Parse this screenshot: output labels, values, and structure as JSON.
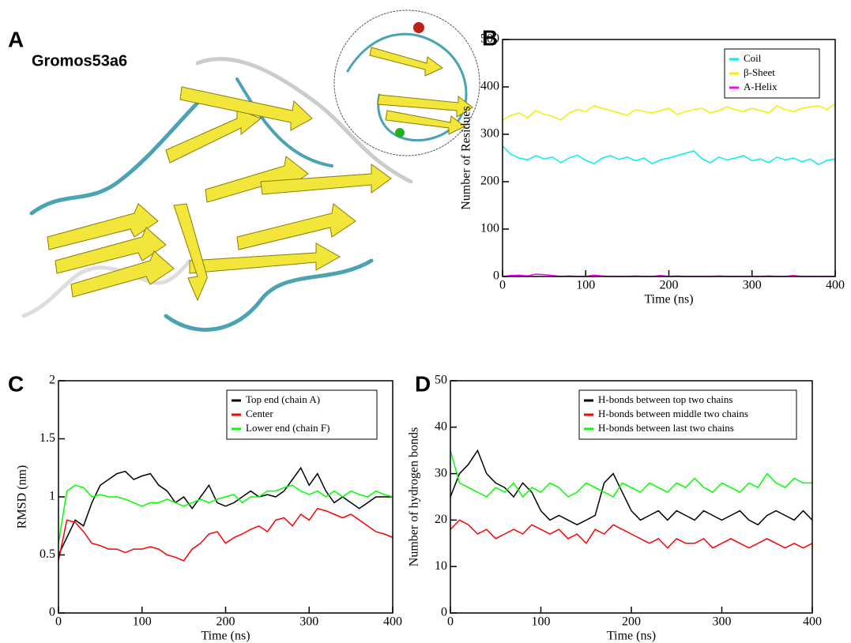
{
  "figure": {
    "panel_labels": [
      "A",
      "B",
      "C",
      "D"
    ],
    "structure_label": "Gromos53a6"
  },
  "chart_data": [
    {
      "type": "line",
      "xlabel": "Time (ns)",
      "ylabel": "Number of Residues",
      "xlim": [
        0,
        400
      ],
      "xticks": [
        0,
        100,
        200,
        300,
        400
      ],
      "ylim": [
        0,
        500
      ],
      "yticks": [
        0,
        100,
        200,
        300,
        400,
        500
      ],
      "legend": "upper right",
      "x": [
        0,
        10,
        20,
        30,
        40,
        50,
        60,
        70,
        80,
        90,
        100,
        110,
        120,
        130,
        140,
        150,
        160,
        170,
        180,
        190,
        200,
        210,
        220,
        230,
        240,
        250,
        260,
        270,
        280,
        290,
        300,
        310,
        320,
        330,
        340,
        350,
        360,
        370,
        380,
        390,
        400
      ],
      "series": [
        {
          "name": "Coil",
          "color": "#00f0f0",
          "values": [
            275,
            258,
            250,
            246,
            255,
            248,
            252,
            240,
            250,
            256,
            245,
            238,
            250,
            255,
            247,
            252,
            244,
            250,
            238,
            246,
            250,
            255,
            260,
            265,
            248,
            240,
            252,
            246,
            250,
            255,
            244,
            248,
            240,
            252,
            246,
            250,
            242,
            248,
            236,
            245,
            248
          ]
        },
        {
          "name": "β-Sheet",
          "color": "#f0f000",
          "values": [
            330,
            340,
            345,
            335,
            350,
            342,
            338,
            330,
            345,
            352,
            348,
            360,
            355,
            350,
            345,
            340,
            352,
            348,
            345,
            350,
            355,
            342,
            348,
            352,
            355,
            345,
            350,
            358,
            352,
            348,
            355,
            350,
            345,
            360,
            352,
            348,
            355,
            358,
            360,
            352,
            365
          ]
        },
        {
          "name": "A-Helix",
          "color": "#ff00ff",
          "values": [
            0,
            2,
            3,
            1,
            5,
            4,
            2,
            0,
            1,
            0,
            0,
            3,
            1,
            0,
            0,
            0,
            1,
            0,
            0,
            2,
            0,
            1,
            0,
            0,
            0,
            0,
            1,
            0,
            0,
            0,
            0,
            0,
            1,
            0,
            0,
            2,
            0,
            0,
            0,
            0,
            0
          ]
        }
      ]
    },
    {
      "type": "line",
      "xlabel": "Time (ns)",
      "ylabel": "RMSD (nm)",
      "xlim": [
        0,
        400
      ],
      "xticks": [
        0,
        100,
        200,
        300,
        400
      ],
      "ylim": [
        0,
        2
      ],
      "yticks": [
        0,
        0.5,
        1,
        1.5,
        2
      ],
      "legend": "upper right",
      "x": [
        0,
        10,
        20,
        30,
        40,
        50,
        60,
        70,
        80,
        90,
        100,
        110,
        120,
        130,
        140,
        150,
        160,
        170,
        180,
        190,
        200,
        210,
        220,
        230,
        240,
        250,
        260,
        270,
        280,
        290,
        300,
        310,
        320,
        330,
        340,
        350,
        360,
        370,
        380,
        390,
        400
      ],
      "series": [
        {
          "name": "Top end (chain A)",
          "color": "#000000",
          "values": [
            0.5,
            0.65,
            0.8,
            0.75,
            0.95,
            1.1,
            1.15,
            1.2,
            1.22,
            1.15,
            1.18,
            1.2,
            1.1,
            1.05,
            0.95,
            1.0,
            0.9,
            1.0,
            1.1,
            0.95,
            0.92,
            0.95,
            1.0,
            1.05,
            1.0,
            1.02,
            1.0,
            1.05,
            1.15,
            1.25,
            1.1,
            1.2,
            1.05,
            0.95,
            1.0,
            0.95,
            0.9,
            0.95,
            1.0,
            1.0,
            1.0
          ]
        },
        {
          "name": "Center",
          "color": "#ff0000",
          "values": [
            0.45,
            0.8,
            0.78,
            0.7,
            0.6,
            0.58,
            0.55,
            0.55,
            0.52,
            0.55,
            0.55,
            0.57,
            0.55,
            0.5,
            0.48,
            0.45,
            0.55,
            0.6,
            0.68,
            0.7,
            0.6,
            0.65,
            0.68,
            0.72,
            0.75,
            0.7,
            0.8,
            0.82,
            0.75,
            0.85,
            0.8,
            0.9,
            0.88,
            0.85,
            0.82,
            0.85,
            0.8,
            0.75,
            0.7,
            0.68,
            0.65
          ]
        },
        {
          "name": "Lower end (chain F)",
          "color": "#00ff00",
          "values": [
            0.6,
            1.05,
            1.1,
            1.08,
            1.0,
            1.02,
            1.0,
            1.0,
            0.98,
            0.95,
            0.92,
            0.95,
            0.95,
            0.98,
            0.95,
            0.92,
            0.95,
            0.98,
            0.95,
            0.98,
            1.0,
            1.02,
            0.95,
            1.0,
            1.0,
            1.05,
            1.05,
            1.08,
            1.1,
            1.05,
            1.02,
            1.05,
            1.0,
            1.05,
            1.0,
            1.05,
            1.02,
            1.0,
            1.05,
            1.02,
            1.0
          ]
        }
      ]
    },
    {
      "type": "line",
      "xlabel": "Time (ns)",
      "ylabel": "Number of hydrogen bonds",
      "xlim": [
        0,
        400
      ],
      "xticks": [
        0,
        100,
        200,
        300,
        400
      ],
      "ylim": [
        0,
        50
      ],
      "yticks": [
        0,
        10,
        20,
        30,
        40,
        50
      ],
      "legend": "upper right",
      "x": [
        0,
        10,
        20,
        30,
        40,
        50,
        60,
        70,
        80,
        90,
        100,
        110,
        120,
        130,
        140,
        150,
        160,
        170,
        180,
        190,
        200,
        210,
        220,
        230,
        240,
        250,
        260,
        270,
        280,
        290,
        300,
        310,
        320,
        330,
        340,
        350,
        360,
        370,
        380,
        390,
        400
      ],
      "series": [
        {
          "name": "H-bonds between top two chains",
          "color": "#000000",
          "values": [
            25,
            30,
            32,
            35,
            30,
            28,
            27,
            25,
            28,
            26,
            22,
            20,
            21,
            20,
            19,
            20,
            21,
            28,
            30,
            26,
            22,
            20,
            21,
            22,
            20,
            22,
            21,
            20,
            22,
            21,
            20,
            21,
            22,
            20,
            19,
            21,
            22,
            21,
            20,
            22,
            20
          ]
        },
        {
          "name": "H-bonds between middle two chains",
          "color": "#ff0000",
          "values": [
            18,
            20,
            19,
            17,
            18,
            16,
            17,
            18,
            17,
            19,
            18,
            17,
            18,
            16,
            17,
            15,
            18,
            17,
            19,
            18,
            17,
            16,
            15,
            16,
            14,
            16,
            15,
            15,
            16,
            14,
            15,
            16,
            15,
            14,
            15,
            16,
            15,
            14,
            15,
            14,
            15
          ]
        },
        {
          "name": "H-bonds between last two chains",
          "color": "#00ff00",
          "values": [
            35,
            28,
            27,
            26,
            25,
            27,
            26,
            28,
            25,
            27,
            26,
            28,
            27,
            25,
            26,
            28,
            27,
            26,
            25,
            28,
            27,
            26,
            28,
            27,
            26,
            28,
            27,
            29,
            27,
            26,
            28,
            27,
            26,
            28,
            27,
            30,
            28,
            27,
            29,
            28,
            28
          ]
        }
      ]
    }
  ]
}
